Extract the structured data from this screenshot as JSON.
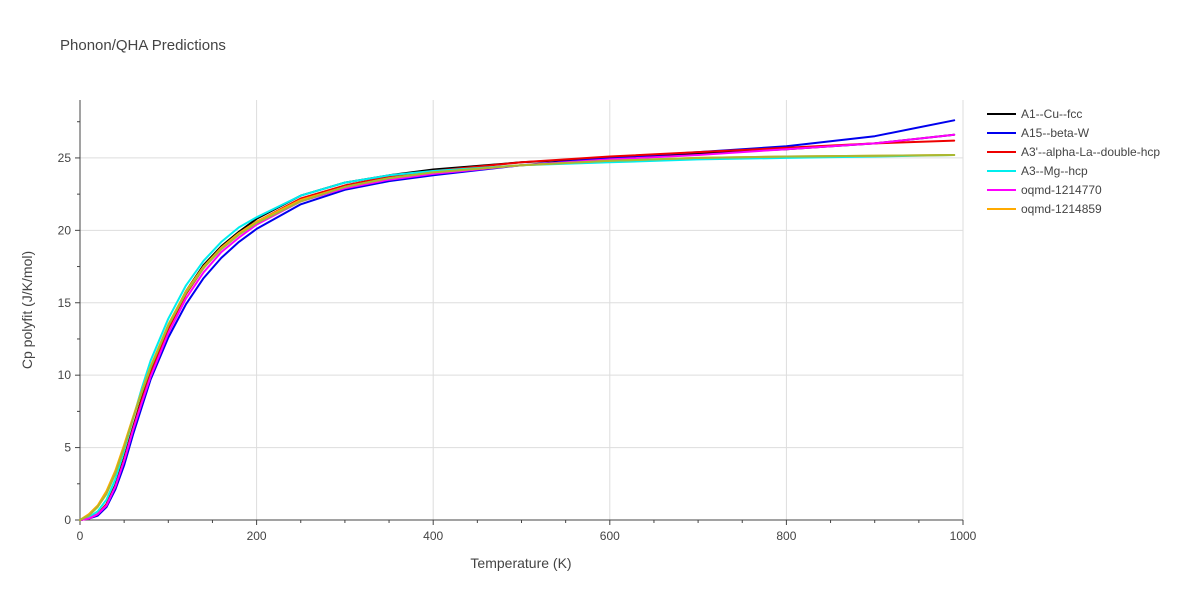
{
  "chart_data": {
    "type": "line",
    "title": "Phonon/QHA Predictions",
    "xlabel": "Temperature (K)",
    "ylabel": "Cp polyfit (J/K/mol)",
    "xlim": [
      0,
      1000
    ],
    "ylim": [
      0,
      29
    ],
    "xticks": [
      0,
      200,
      400,
      600,
      800,
      1000
    ],
    "yticks": [
      0,
      5,
      10,
      15,
      20,
      25
    ],
    "grid": true,
    "legend_position": "right",
    "x": [
      0,
      10,
      20,
      30,
      40,
      50,
      60,
      70,
      80,
      100,
      120,
      140,
      160,
      180,
      200,
      250,
      300,
      350,
      400,
      500,
      600,
      700,
      800,
      900,
      990
    ],
    "series": [
      {
        "name": "A1--Cu--fcc",
        "color": "#000000",
        "values": [
          0,
          0.1,
          0.4,
          1.1,
          2.4,
          4.3,
          6.4,
          8.4,
          10.3,
          13.4,
          15.8,
          17.6,
          18.9,
          19.9,
          20.8,
          22.4,
          23.3,
          23.8,
          24.2,
          24.7,
          25.0,
          25.3,
          25.6,
          26.0,
          26.6
        ]
      },
      {
        "name": "A15--beta-W",
        "color": "#0000ee",
        "values": [
          0,
          0.1,
          0.3,
          0.9,
          2.1,
          3.8,
          5.9,
          7.8,
          9.7,
          12.6,
          14.9,
          16.7,
          18.1,
          19.2,
          20.1,
          21.8,
          22.8,
          23.4,
          23.8,
          24.5,
          25.0,
          25.4,
          25.8,
          26.5,
          27.6
        ]
      },
      {
        "name": "A3'--alpha-La--double-hcp",
        "color": "#ee0000",
        "values": [
          0,
          0.1,
          0.4,
          1.1,
          2.3,
          4.2,
          6.3,
          8.3,
          10.1,
          13.2,
          15.6,
          17.4,
          18.8,
          19.8,
          20.6,
          22.2,
          23.1,
          23.7,
          24.1,
          24.7,
          25.1,
          25.4,
          25.7,
          26.0,
          26.2
        ]
      },
      {
        "name": "A3--Mg--hcp",
        "color": "#00eeee",
        "values": [
          0,
          0.2,
          0.6,
          1.4,
          2.8,
          4.8,
          7.0,
          9.1,
          11.0,
          13.9,
          16.2,
          17.9,
          19.2,
          20.2,
          20.9,
          22.4,
          23.3,
          23.8,
          24.1,
          24.5,
          24.7,
          24.9,
          25.0,
          25.1,
          25.2
        ]
      },
      {
        "name": "oqmd-1214770",
        "color": "#ff00ff",
        "values": [
          0,
          0.1,
          0.4,
          1.0,
          2.3,
          4.1,
          6.2,
          8.1,
          9.9,
          12.9,
          15.3,
          17.1,
          18.5,
          19.5,
          20.4,
          22.0,
          22.9,
          23.5,
          23.9,
          24.5,
          24.9,
          25.2,
          25.6,
          26.0,
          26.6
        ]
      },
      {
        "name": "oqmd-1214859",
        "color": "#ffaa00",
        "values": [
          0,
          0.4,
          1.0,
          2.0,
          3.4,
          5.2,
          7.1,
          8.9,
          10.6,
          13.5,
          15.8,
          17.5,
          18.8,
          19.8,
          20.6,
          22.1,
          23.0,
          23.6,
          24.0,
          24.5,
          24.8,
          25.0,
          25.1,
          25.15,
          25.2
        ]
      }
    ],
    "overlay_series": {
      "name": "",
      "color": "#a8b832",
      "values": [
        0,
        0.3,
        0.9,
        1.8,
        3.2,
        5.0,
        7.0,
        8.8,
        10.5,
        13.4,
        15.7,
        17.4,
        18.7,
        19.7,
        20.5,
        22.0,
        23.0,
        23.6,
        24.0,
        24.5,
        24.8,
        25.0,
        25.1,
        25.15,
        25.2
      ]
    }
  }
}
